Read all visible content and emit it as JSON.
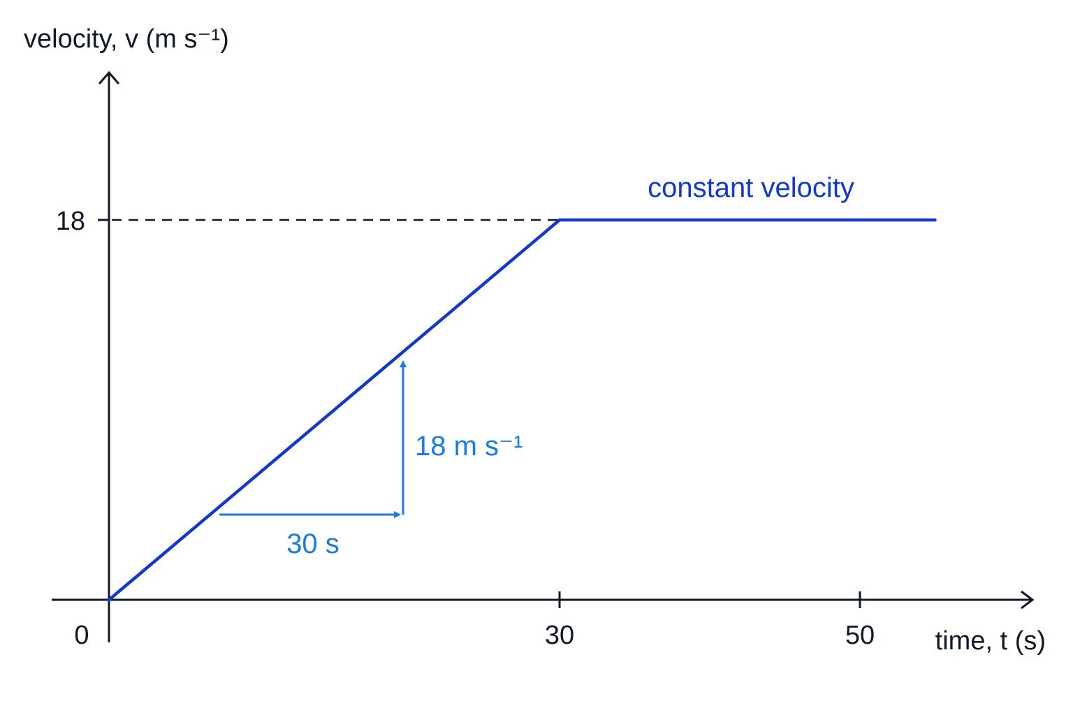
{
  "chart_data": {
    "type": "line",
    "xlabel": "time, t (s)",
    "ylabel": "velocity, v (m s⁻¹)",
    "xlim": [
      0,
      56
    ],
    "ylim": [
      0,
      20
    ],
    "grid": false,
    "series": [
      {
        "x": [
          0,
          30,
          55
        ],
        "y": [
          0,
          18,
          18
        ]
      }
    ],
    "x_ticks": [
      {
        "value": 0,
        "label": "0"
      },
      {
        "value": 30,
        "label": "30"
      },
      {
        "value": 50,
        "label": "50"
      }
    ],
    "y_ticks": [
      {
        "value": 18,
        "label": "18"
      }
    ],
    "annotations": [
      {
        "text": "constant velocity",
        "x": 42,
        "y": 19.5
      },
      {
        "text": "30 s",
        "x": 9,
        "y": 1.5
      },
      {
        "text": "18 m s⁻¹",
        "x": 24,
        "y": 10
      }
    ],
    "colors": {
      "axis": "#111827",
      "line": "#1238cc",
      "annotation": "#1a7be0"
    }
  }
}
